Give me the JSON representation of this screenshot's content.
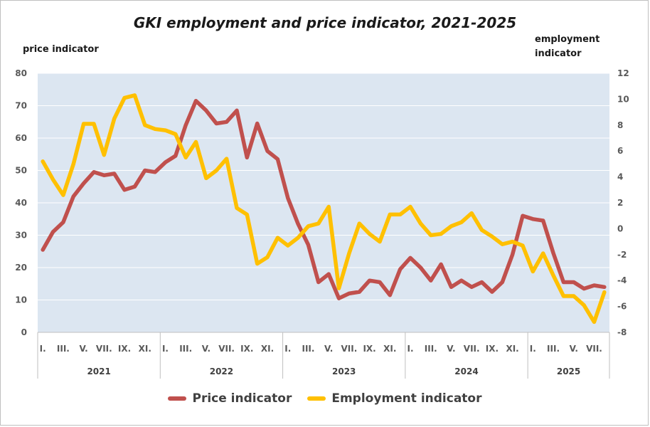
{
  "chart_data": {
    "type": "line",
    "title": "GKI employment and price indicator, 2021-2025",
    "y_left_label": "price indicator",
    "y_right_label": "employment indicator",
    "y_left_range": [
      0,
      80
    ],
    "y_left_ticks": [
      "0",
      "10",
      "20",
      "30",
      "40",
      "50",
      "60",
      "70",
      "80"
    ],
    "y_right_range": [
      -8,
      12
    ],
    "y_right_ticks": [
      "-8",
      "-6",
      "-4",
      "-2",
      "0",
      "2",
      "4",
      "6",
      "8",
      "10",
      "12"
    ],
    "grid": true,
    "legend_position": "bottom",
    "month_labels": [
      "I.",
      "III.",
      "V.",
      "VII.",
      "IX.",
      "XI.",
      "I.",
      "III.",
      "V.",
      "VII.",
      "IX.",
      "XI.",
      "I.",
      "III.",
      "V.",
      "VII.",
      "IX.",
      "XI.",
      "I.",
      "III.",
      "V.",
      "VII.",
      "IX.",
      "XI.",
      "I.",
      "III.",
      "V.",
      "VII."
    ],
    "years": [
      "2021",
      "2022",
      "2023",
      "2024",
      "2025"
    ],
    "series": [
      {
        "name": "Price indicator",
        "axis": "left",
        "color": "#c0504d",
        "values": [
          25.5,
          31,
          34,
          42,
          46,
          49.5,
          48.5,
          49,
          44,
          45,
          50,
          49.5,
          52.5,
          54.5,
          64,
          71.5,
          68.5,
          64.5,
          65,
          68.5,
          54,
          64.5,
          56,
          53.5,
          41.5,
          33.5,
          27,
          15.5,
          18,
          10.5,
          12,
          12.5,
          16,
          15.5,
          11.5,
          19.5,
          23,
          20,
          16,
          21,
          14,
          16,
          14,
          15.5,
          12.5,
          15.5,
          24,
          36,
          35,
          34.5,
          24.5,
          15.5,
          15.5,
          13.5,
          14.5,
          14
        ]
      },
      {
        "name": "Employment indicator",
        "axis": "right",
        "color": "#ffc000",
        "values": [
          5.2,
          3.8,
          2.6,
          5.0,
          8.1,
          8.1,
          5.7,
          8.5,
          10.1,
          10.3,
          8.0,
          7.7,
          7.6,
          7.3,
          5.5,
          6.7,
          3.9,
          4.5,
          5.4,
          1.6,
          1.1,
          -2.7,
          -2.2,
          -0.7,
          -1.3,
          -0.7,
          0.2,
          0.4,
          1.7,
          -4.6,
          -1.9,
          0.4,
          -0.4,
          -1.0,
          1.1,
          1.1,
          1.7,
          0.4,
          -0.5,
          -0.4,
          0.2,
          0.5,
          1.2,
          -0.1,
          -0.6,
          -1.2,
          -1.0,
          -1.3,
          -3.3,
          -1.9,
          -3.6,
          -5.2,
          -5.2,
          -5.9,
          -7.2,
          -4.9
        ]
      }
    ]
  }
}
